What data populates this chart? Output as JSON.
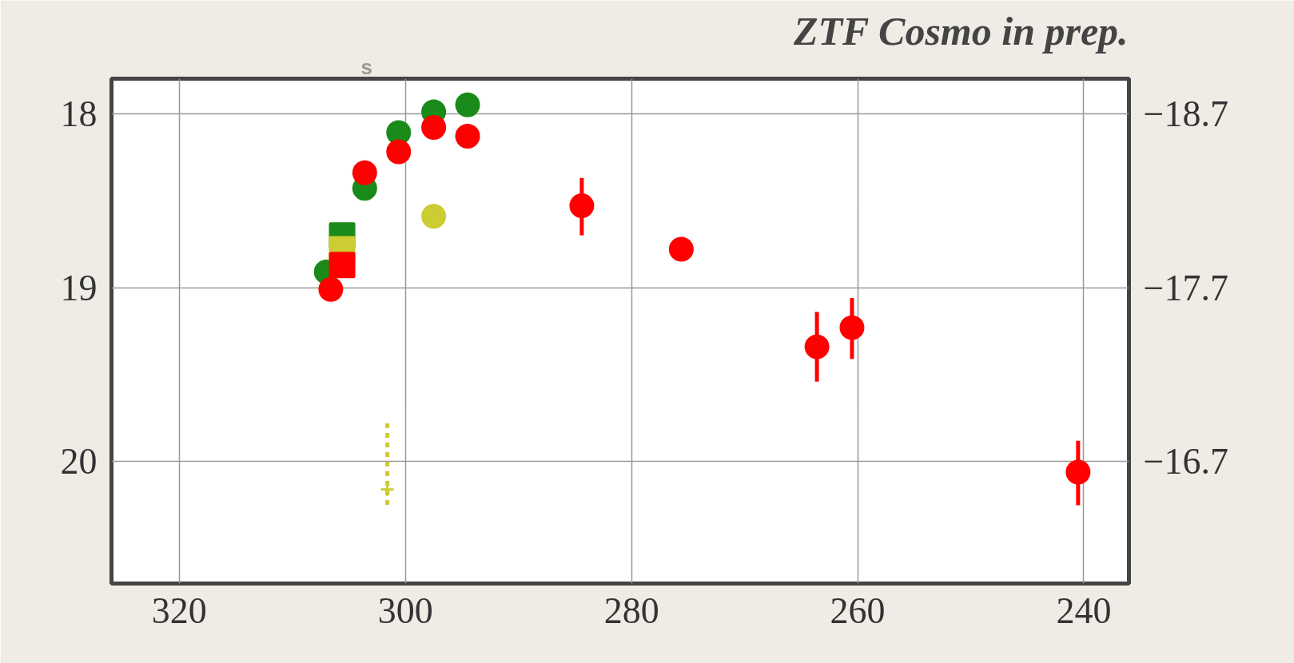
{
  "chart_data": {
    "type": "scatter",
    "title": "ZTF Cosmo in prep.",
    "annotations": [
      "s"
    ],
    "xlim": [
      326,
      236
    ],
    "xticks": [
      320,
      300,
      280,
      260,
      240
    ],
    "ylim": [
      20.7,
      17.8
    ],
    "yticks": [
      18,
      19,
      20
    ],
    "y2lim": [
      -16.0,
      -18.9
    ],
    "y2ticks": [
      -18.7,
      -17.7,
      -16.7
    ],
    "grid": true,
    "series": [
      {
        "color": "#1a8a1a",
        "marker": "circle",
        "x": [
          307.0,
          303.6,
          300.6,
          297.5,
          294.5
        ],
        "values": [
          18.91,
          18.43,
          18.11,
          17.99,
          17.95
        ]
      },
      {
        "color": "#1a8a1a",
        "marker": "square",
        "x": [
          305.6
        ],
        "values": [
          18.7
        ]
      },
      {
        "color": "#cccc33",
        "marker": "square",
        "x": [
          305.6
        ],
        "values": [
          18.78
        ]
      },
      {
        "color": "#cccc33",
        "marker": "circle",
        "x": [
          297.5
        ],
        "values": [
          18.59
        ]
      },
      {
        "color": "#cccc33",
        "marker": "cross",
        "x": [
          301.6
        ],
        "values": [
          20.16
        ],
        "errors": [
          [
            19.78,
            20.25
          ]
        ]
      },
      {
        "color": "#ff0000",
        "marker": "square",
        "x": [
          305.6
        ],
        "values": [
          18.87
        ]
      },
      {
        "color": "#ff0000",
        "marker": "circle",
        "x": [
          306.6,
          303.6,
          300.6,
          297.5,
          294.5,
          284.4,
          275.6,
          263.6,
          260.5,
          240.5
        ],
        "values": [
          19.01,
          18.34,
          18.22,
          18.08,
          18.13,
          18.53,
          18.78,
          19.34,
          19.23,
          20.06
        ],
        "errors": [
          null,
          null,
          null,
          null,
          null,
          [
            18.37,
            18.7
          ],
          null,
          [
            19.14,
            19.54
          ],
          [
            19.06,
            19.41
          ],
          [
            19.88,
            20.25
          ]
        ]
      }
    ]
  }
}
